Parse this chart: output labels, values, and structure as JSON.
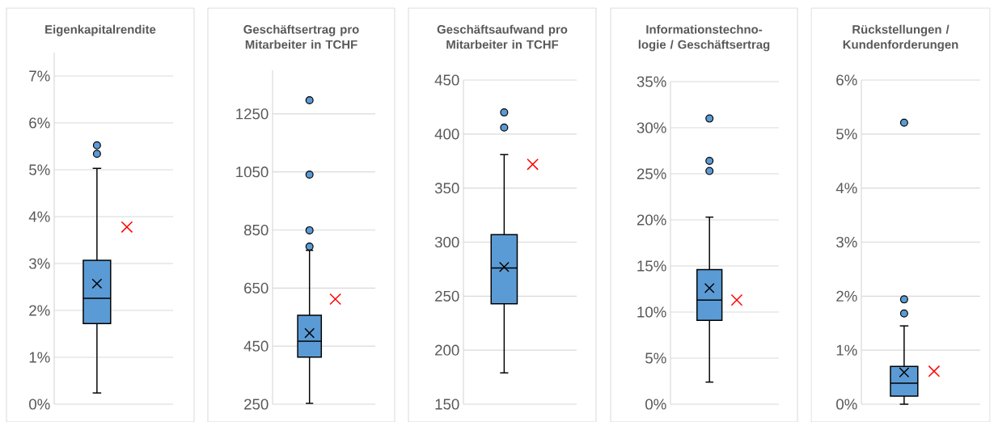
{
  "chart_data": [
    {
      "type": "box",
      "title": "Eigenkapitalrendite",
      "categories": [
        null
      ],
      "ylim": [
        0,
        7.5
      ],
      "yticks": [
        {
          "value": 0,
          "label": "0%"
        },
        {
          "value": 1,
          "label": "1%"
        },
        {
          "value": 2,
          "label": "2%"
        },
        {
          "value": 3,
          "label": "3%"
        },
        {
          "value": 4,
          "label": "4%"
        },
        {
          "value": 5,
          "label": "5%"
        },
        {
          "value": 6,
          "label": "6%"
        },
        {
          "value": 7,
          "label": "7%"
        }
      ],
      "grid": "y",
      "tick_labels": "y",
      "series": [
        {
          "color": "#5b9bd5",
          "boxes": [
            {
              "low": 0.24,
              "q1": 1.72,
              "median": 2.26,
              "q3": 3.07,
              "high": 5.03,
              "mean": 2.57,
              "outliers": [
                5.34,
                5.52
              ]
            }
          ]
        },
        {
          "type": "scatter",
          "color": "#ff0000",
          "marker": "cross",
          "values": [
            3.78
          ]
        }
      ]
    },
    {
      "type": "box",
      "title": "Geschäftsertrag pro Mitarbeiter in TCHF",
      "categories": [
        null
      ],
      "ylim": [
        250,
        1400
      ],
      "yticks": [
        250,
        450,
        650,
        850,
        1050,
        1250
      ],
      "grid": "y",
      "tick_labels": "y",
      "series": [
        {
          "color": "#5b9bd5",
          "boxes": [
            {
              "low": 253,
              "q1": 412,
              "median": 467,
              "q3": 556,
              "high": 780,
              "mean": 495,
              "outliers": [
                793,
                849,
                1041,
                1297
              ]
            }
          ]
        },
        {
          "type": "scatter",
          "color": "#ff0000",
          "marker": "cross",
          "values": [
            612
          ]
        }
      ]
    },
    {
      "type": "box",
      "title": "Geschäftsaufwand pro Mitarbeiter in TCHF",
      "categories": [
        null
      ],
      "ylim": [
        150,
        450
      ],
      "yticks": [
        150,
        200,
        250,
        300,
        350,
        400,
        450
      ],
      "grid": "y",
      "tick_labels": "y",
      "series": [
        {
          "color": "#5b9bd5",
          "boxes": [
            {
              "low": 179,
              "q1": 243,
              "median": 276,
              "q3": 307,
              "high": 381,
              "mean": 277,
              "outliers": [
                406,
                420
              ]
            }
          ]
        },
        {
          "type": "scatter",
          "color": "#ff0000",
          "marker": "cross",
          "values": [
            372
          ]
        }
      ]
    },
    {
      "type": "box",
      "title": "Informationstechno-logie / Geschäftsertrag",
      "categories": [
        null
      ],
      "ylim": [
        0,
        35
      ],
      "yticks": [
        {
          "value": 0,
          "label": "0%"
        },
        {
          "value": 5,
          "label": "5%"
        },
        {
          "value": 10,
          "label": "10%"
        },
        {
          "value": 15,
          "label": "15%"
        },
        {
          "value": 20,
          "label": "20%"
        },
        {
          "value": 25,
          "label": "25%"
        },
        {
          "value": 30,
          "label": "30%"
        },
        {
          "value": 35,
          "label": "35%"
        }
      ],
      "grid": "y",
      "tick_labels": "y",
      "series": [
        {
          "color": "#5b9bd5",
          "boxes": [
            {
              "low": 2.4,
              "q1": 9.1,
              "median": 11.3,
              "q3": 14.6,
              "high": 20.3,
              "mean": 12.6,
              "outliers": [
                25.3,
                26.4,
                31.0
              ]
            }
          ]
        },
        {
          "type": "scatter",
          "color": "#ff0000",
          "marker": "cross",
          "values": [
            11.3
          ]
        }
      ]
    },
    {
      "type": "box",
      "title": "Rückstellungen / Kundenforderungen",
      "categories": [
        null
      ],
      "ylim": [
        0,
        6
      ],
      "yticks": [
        {
          "value": 0,
          "label": "0%"
        },
        {
          "value": 1,
          "label": "1%"
        },
        {
          "value": 2,
          "label": "2%"
        },
        {
          "value": 3,
          "label": "3%"
        },
        {
          "value": 4,
          "label": "4%"
        },
        {
          "value": 5,
          "label": "5%"
        },
        {
          "value": 6,
          "label": "6%"
        }
      ],
      "grid": "y",
      "tick_labels": "y",
      "series": [
        {
          "color": "#5b9bd5",
          "boxes": [
            {
              "low": 0.0,
              "q1": 0.15,
              "median": 0.39,
              "q3": 0.7,
              "high": 1.45,
              "mean": 0.59,
              "outliers": [
                1.68,
                1.94,
                5.21
              ]
            }
          ]
        },
        {
          "type": "scatter",
          "color": "#ff0000",
          "marker": "cross",
          "values": [
            0.61
          ]
        }
      ]
    }
  ]
}
